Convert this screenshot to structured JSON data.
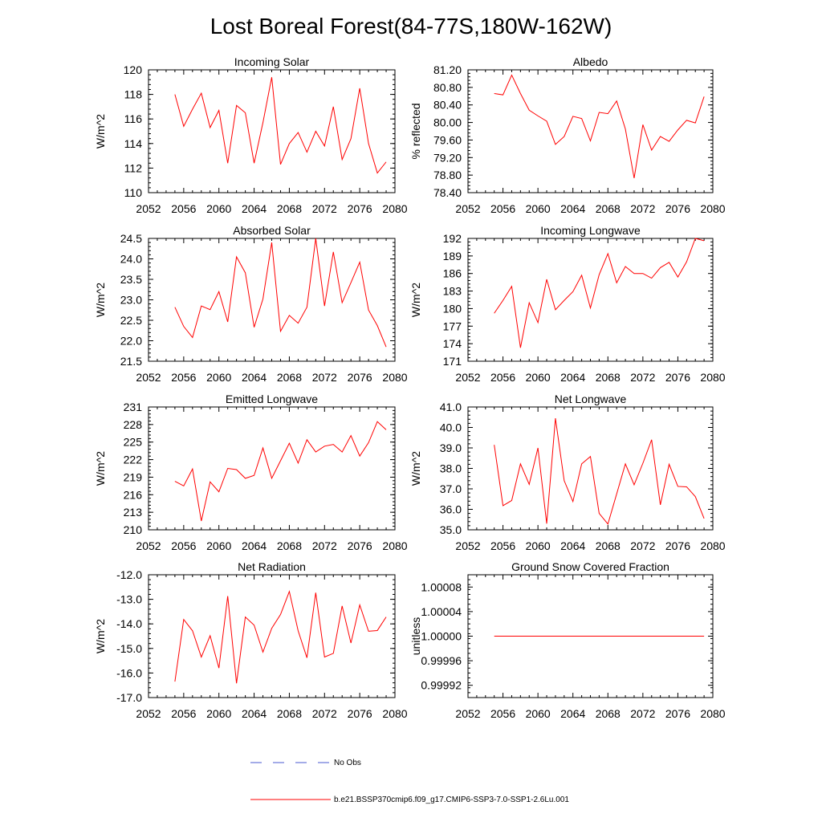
{
  "figure": {
    "title": "Lost Boreal Forest(84-77S,180W-162W)"
  },
  "legend": {
    "entries": [
      {
        "label": "No Obs",
        "color": "#4a5ad0",
        "style": "dashed"
      },
      {
        "label": "b.e21.BSSP370cmip6.f09_g17.CMIP6-SSP3-7.0-SSP1-2.6Lu.001",
        "color": "#ff0000",
        "style": "solid"
      }
    ]
  },
  "chart_data": [
    {
      "type": "line",
      "title": "Incoming Solar",
      "ylabel": "W/m^2",
      "xlim": [
        2052,
        2080
      ],
      "ylim": [
        110,
        120
      ],
      "xticks": [
        "2052",
        "2056",
        "2060",
        "2064",
        "2068",
        "2072",
        "2076",
        "2080"
      ],
      "yticks": [
        "110",
        "112",
        "114",
        "116",
        "118",
        "120"
      ],
      "x": [
        2055,
        2056,
        2057,
        2058,
        2059,
        2060,
        2061,
        2062,
        2063,
        2064,
        2065,
        2066,
        2067,
        2068,
        2069,
        2070,
        2071,
        2072,
        2073,
        2074,
        2075,
        2076,
        2077,
        2078,
        2079
      ],
      "series": [
        {
          "color": "#ff0000",
          "values": [
            118.0,
            115.4,
            116.8,
            118.1,
            115.3,
            116.7,
            112.4,
            117.1,
            116.5,
            112.4,
            115.7,
            119.4,
            112.3,
            114.0,
            114.9,
            113.3,
            115.0,
            113.8,
            117.0,
            112.7,
            114.4,
            118.5,
            114.0,
            111.6,
            112.5
          ]
        }
      ]
    },
    {
      "type": "line",
      "title": "Albedo",
      "ylabel": "% reflected",
      "xlim": [
        2052,
        2080
      ],
      "ylim": [
        78.4,
        81.2
      ],
      "xticks": [
        "2052",
        "2056",
        "2060",
        "2064",
        "2068",
        "2072",
        "2076",
        "2080"
      ],
      "yticks": [
        "78.40",
        "78.80",
        "79.20",
        "79.60",
        "80.00",
        "80.40",
        "80.80",
        "81.20"
      ],
      "x": [
        2055,
        2056,
        2057,
        2058,
        2059,
        2060,
        2061,
        2062,
        2063,
        2064,
        2065,
        2066,
        2067,
        2068,
        2069,
        2070,
        2071,
        2072,
        2073,
        2074,
        2075,
        2076,
        2077,
        2078,
        2079
      ],
      "series": [
        {
          "color": "#ff0000",
          "values": [
            80.66,
            80.63,
            81.08,
            80.66,
            80.28,
            80.15,
            80.03,
            79.5,
            79.68,
            80.14,
            80.09,
            79.58,
            80.23,
            80.2,
            80.49,
            79.85,
            78.73,
            79.95,
            79.37,
            79.68,
            79.57,
            79.83,
            80.05,
            79.99,
            80.59
          ]
        }
      ]
    },
    {
      "type": "line",
      "title": "Absorbed Solar",
      "ylabel": "W/m^2",
      "xlim": [
        2052,
        2080
      ],
      "ylim": [
        21.5,
        24.5
      ],
      "xticks": [
        "2052",
        "2056",
        "2060",
        "2064",
        "2068",
        "2072",
        "2076",
        "2080"
      ],
      "yticks": [
        "21.5",
        "22.0",
        "22.5",
        "23.0",
        "23.5",
        "24.0",
        "24.5"
      ],
      "x": [
        2055,
        2056,
        2057,
        2058,
        2059,
        2060,
        2061,
        2062,
        2063,
        2064,
        2065,
        2066,
        2067,
        2068,
        2069,
        2070,
        2071,
        2072,
        2073,
        2074,
        2075,
        2076,
        2077,
        2078,
        2079
      ],
      "series": [
        {
          "color": "#ff0000",
          "values": [
            22.82,
            22.35,
            22.08,
            22.85,
            22.76,
            23.2,
            22.46,
            24.05,
            23.66,
            22.33,
            23.02,
            24.4,
            22.23,
            22.62,
            22.43,
            22.82,
            24.5,
            22.85,
            24.17,
            22.93,
            23.42,
            23.92,
            22.75,
            22.37,
            21.85
          ]
        }
      ]
    },
    {
      "type": "line",
      "title": "Incoming Longwave",
      "ylabel": "W/m^2",
      "xlim": [
        2052,
        2080
      ],
      "ylim": [
        171,
        192
      ],
      "xticks": [
        "2052",
        "2056",
        "2060",
        "2064",
        "2068",
        "2072",
        "2076",
        "2080"
      ],
      "yticks": [
        "171",
        "174",
        "177",
        "180",
        "183",
        "186",
        "189",
        "192"
      ],
      "x": [
        2055,
        2056,
        2057,
        2058,
        2059,
        2060,
        2061,
        2062,
        2063,
        2064,
        2065,
        2066,
        2067,
        2068,
        2069,
        2070,
        2071,
        2072,
        2073,
        2074,
        2075,
        2076,
        2077,
        2078,
        2079
      ],
      "series": [
        {
          "color": "#ff0000",
          "values": [
            179.2,
            181.4,
            183.8,
            173.3,
            181.0,
            177.6,
            185.0,
            179.8,
            181.4,
            182.9,
            185.7,
            180.1,
            185.8,
            189.4,
            184.4,
            187.2,
            186.0,
            186.0,
            185.2,
            187.0,
            187.9,
            185.4,
            188.0,
            192.0,
            191.6
          ]
        }
      ]
    },
    {
      "type": "line",
      "title": "Emitted Longwave",
      "ylabel": "W/m^2",
      "xlim": [
        2052,
        2080
      ],
      "ylim": [
        210,
        231
      ],
      "xticks": [
        "2052",
        "2056",
        "2060",
        "2064",
        "2068",
        "2072",
        "2076",
        "2080"
      ],
      "yticks": [
        "210",
        "213",
        "216",
        "219",
        "222",
        "225",
        "228",
        "231"
      ],
      "x": [
        2055,
        2056,
        2057,
        2058,
        2059,
        2060,
        2061,
        2062,
        2063,
        2064,
        2065,
        2066,
        2067,
        2068,
        2069,
        2070,
        2071,
        2072,
        2073,
        2074,
        2075,
        2076,
        2077,
        2078,
        2079
      ],
      "series": [
        {
          "color": "#ff0000",
          "values": [
            218.3,
            217.5,
            220.4,
            211.5,
            218.2,
            216.5,
            220.5,
            220.3,
            218.8,
            219.3,
            224.0,
            218.8,
            221.8,
            224.8,
            221.4,
            225.4,
            223.3,
            224.3,
            224.6,
            223.3,
            226.1,
            222.6,
            224.9,
            228.5,
            227.1
          ]
        }
      ]
    },
    {
      "type": "line",
      "title": "Net Longwave",
      "ylabel": "W/m^2",
      "xlim": [
        2052,
        2080
      ],
      "ylim": [
        35.0,
        41.0
      ],
      "xticks": [
        "2052",
        "2056",
        "2060",
        "2064",
        "2068",
        "2072",
        "2076",
        "2080"
      ],
      "yticks": [
        "35.0",
        "36.0",
        "37.0",
        "38.0",
        "39.0",
        "40.0",
        "41.0"
      ],
      "x": [
        2055,
        2056,
        2057,
        2058,
        2059,
        2060,
        2061,
        2062,
        2063,
        2064,
        2065,
        2066,
        2067,
        2068,
        2069,
        2070,
        2071,
        2072,
        2073,
        2074,
        2075,
        2076,
        2077,
        2078,
        2079
      ],
      "series": [
        {
          "color": "#ff0000",
          "values": [
            39.15,
            36.18,
            36.43,
            38.22,
            37.22,
            39.0,
            35.3,
            40.45,
            37.4,
            36.38,
            38.22,
            38.58,
            35.8,
            35.28,
            36.75,
            38.22,
            37.2,
            38.25,
            39.4,
            36.22,
            38.2,
            37.12,
            37.1,
            36.62,
            35.55
          ]
        }
      ]
    },
    {
      "type": "line",
      "title": "Net Radiation",
      "ylabel": "W/m^2",
      "xlim": [
        2052,
        2080
      ],
      "ylim": [
        -17.0,
        -12.0
      ],
      "xticks": [
        "2052",
        "2056",
        "2060",
        "2064",
        "2068",
        "2072",
        "2076",
        "2080"
      ],
      "yticks": [
        "-17.0",
        "-16.0",
        "-15.0",
        "-14.0",
        "-13.0",
        "-12.0"
      ],
      "x": [
        2055,
        2056,
        2057,
        2058,
        2059,
        2060,
        2061,
        2062,
        2063,
        2064,
        2065,
        2066,
        2067,
        2068,
        2069,
        2070,
        2071,
        2072,
        2073,
        2074,
        2075,
        2076,
        2077,
        2078,
        2079
      ],
      "series": [
        {
          "color": "#ff0000",
          "values": [
            -16.35,
            -13.82,
            -14.28,
            -15.35,
            -14.48,
            -15.8,
            -12.87,
            -16.42,
            -13.72,
            -14.05,
            -15.15,
            -14.18,
            -13.62,
            -12.68,
            -14.28,
            -15.38,
            -12.73,
            -15.35,
            -15.2,
            -13.27,
            -14.78,
            -13.23,
            -14.3,
            -14.27,
            -13.72
          ]
        }
      ]
    },
    {
      "type": "line",
      "title": "Ground Snow Covered Fraction",
      "ylabel": "unitless",
      "xlim": [
        2052,
        2080
      ],
      "ylim": [
        0.9999,
        1.0001
      ],
      "xticks": [
        "2052",
        "2056",
        "2060",
        "2064",
        "2068",
        "2072",
        "2076",
        "2080"
      ],
      "yticks": [
        "0.99992",
        "0.99996",
        "1.00000",
        "1.00004",
        "1.00008"
      ],
      "yticks_values": [
        0.99992,
        0.99996,
        1.0,
        1.00004,
        1.00008
      ],
      "x": [
        2055,
        2079
      ],
      "series": [
        {
          "color": "#ff0000",
          "values": [
            1.0,
            1.0
          ]
        }
      ]
    }
  ]
}
